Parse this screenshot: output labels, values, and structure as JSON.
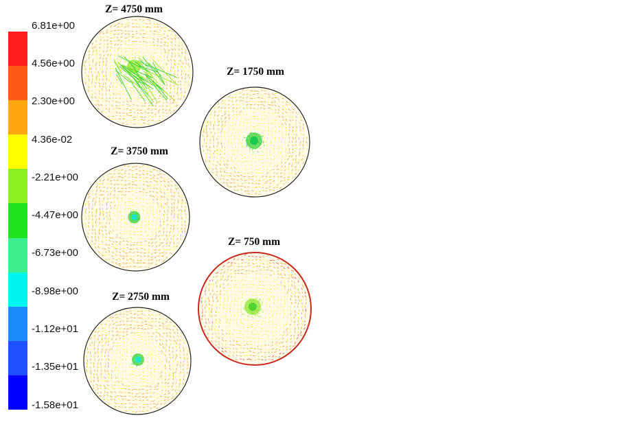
{
  "colorbar": {
    "labels": [
      "6.81e+00",
      "4.56e+00",
      "2.30e+00",
      "4.36e-02",
      "-2.21e+00",
      "-4.47e+00",
      "-6.73e+00",
      "-8.98e+00",
      "-1.12e+01",
      "-1.35e+01",
      "-1.58e+01"
    ],
    "colors": [
      "#ff1c1c",
      "#ff5a14",
      "#ffa70f",
      "#ffff00",
      "#8cf020",
      "#1ee61e",
      "#3cee8c",
      "#00f5f0",
      "#1e8cff",
      "#1e50ff",
      "#0000ff"
    ]
  },
  "slices": [
    {
      "id": "z4750",
      "title": "Z= 4750 mm",
      "core": "green-yellow",
      "rim": "orange"
    },
    {
      "id": "z3750",
      "title": "Z= 3750 mm",
      "core": "cyan",
      "rim": "orange"
    },
    {
      "id": "z2750",
      "title": "Z= 2750 mm",
      "core": "cyan",
      "rim": "orange"
    },
    {
      "id": "z1750",
      "title": "Z= 1750 mm",
      "core": "green",
      "rim": "orange"
    },
    {
      "id": "z750",
      "title": "Z= 750 mm",
      "core": "green",
      "rim": "red"
    }
  ]
}
